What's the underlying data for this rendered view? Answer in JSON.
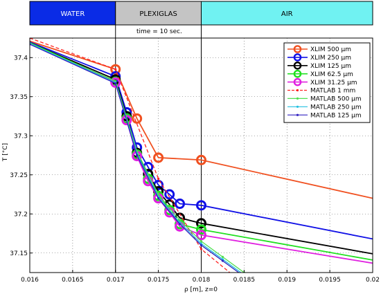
{
  "chart_data": {
    "type": "line",
    "title": "time = 10 sec.",
    "xlabel": "ρ [m], z=0",
    "ylabel": "T [°C]",
    "xlim": [
      0.016,
      0.02
    ],
    "ylim": [
      37.125,
      37.425
    ],
    "x_ticks": [
      "0.016",
      "0.0165",
      "0.017",
      "0.0175",
      "0.018",
      "0.0185",
      "0.019",
      "0.0195",
      "0.02"
    ],
    "y_ticks": [
      "37.15",
      "37.2",
      "37.25",
      "37.3",
      "37.35",
      "37.4"
    ],
    "grid": true,
    "legend_position": "top-right",
    "regions": [
      {
        "label": "WATER",
        "from": 0.016,
        "to": 0.017,
        "color": "#0a2be6",
        "text_color": "#ffffff"
      },
      {
        "label": "PLEXIGLAS",
        "from": 0.017,
        "to": 0.018,
        "color": "#c4c4c4",
        "text_color": "#000000"
      },
      {
        "label": "AIR",
        "from": 0.018,
        "to": 0.02,
        "color": "#70f2f2",
        "text_color": "#000000"
      }
    ],
    "boundaries": [
      0.017,
      0.018
    ],
    "series": [
      {
        "name": "XLIM 500 µm",
        "color": "#f05020",
        "style": "solid",
        "marker": "circle",
        "x": [
          0.016,
          0.017,
          0.01725,
          0.0175,
          0.018,
          0.02
        ],
        "y": [
          37.421,
          37.385,
          37.322,
          37.272,
          37.269,
          37.22
        ]
      },
      {
        "name": "XLIM 250 µm",
        "color": "#1010e6",
        "style": "solid",
        "marker": "circle",
        "x": [
          0.016,
          0.017,
          0.01713,
          0.01725,
          0.01738,
          0.0175,
          0.01763,
          0.01775,
          0.018,
          0.02
        ],
        "y": [
          37.42,
          37.376,
          37.33,
          37.285,
          37.26,
          37.237,
          37.225,
          37.213,
          37.211,
          37.168
        ]
      },
      {
        "name": "XLIM 125 µm",
        "color": "#000000",
        "style": "solid",
        "marker": "circle",
        "x": [
          0.016,
          0.017,
          0.01713,
          0.01725,
          0.01738,
          0.0175,
          0.01763,
          0.01775,
          0.018,
          0.02
        ],
        "y": [
          37.419,
          37.372,
          37.325,
          37.278,
          37.251,
          37.229,
          37.212,
          37.195,
          37.188,
          37.149
        ]
      },
      {
        "name": "XLIM 62.5 µm",
        "color": "#20e020",
        "style": "solid",
        "marker": "circle",
        "x": [
          0.016,
          0.017,
          0.01713,
          0.01725,
          0.01738,
          0.0175,
          0.01763,
          0.01775,
          0.018,
          0.02
        ],
        "y": [
          37.419,
          37.369,
          37.322,
          37.276,
          37.245,
          37.223,
          37.205,
          37.187,
          37.18,
          37.141
        ]
      },
      {
        "name": "XLIM 31.25 µm",
        "color": "#e020e0",
        "style": "solid",
        "marker": "circle",
        "x": [
          0.016,
          0.017,
          0.01713,
          0.01725,
          0.01738,
          0.0175,
          0.01763,
          0.01775,
          0.018,
          0.02
        ],
        "y": [
          37.418,
          37.368,
          37.32,
          37.274,
          37.242,
          37.22,
          37.202,
          37.184,
          37.173,
          37.137
        ]
      },
      {
        "name": "MATLAB 1 mm",
        "color": "#ff2020",
        "style": "dashed",
        "marker": "dot",
        "x": [
          0.016,
          0.017,
          0.0175,
          0.018,
          0.0185
        ],
        "y": [
          37.425,
          37.385,
          37.245,
          37.155,
          37.11
        ]
      },
      {
        "name": "MATLAB 500 µm",
        "color": "#50e050",
        "style": "solid",
        "marker": "dot",
        "x": [
          0.016,
          0.017,
          0.01725,
          0.0175,
          0.01775,
          0.018,
          0.01825,
          0.0185
        ],
        "y": [
          37.418,
          37.37,
          37.28,
          37.225,
          37.192,
          37.165,
          37.145,
          37.125
        ]
      },
      {
        "name": "MATLAB 250 µm",
        "color": "#20c0e0",
        "style": "solid",
        "marker": "dot",
        "x": [
          0.016,
          0.017,
          0.01725,
          0.0175,
          0.01775,
          0.018,
          0.01825,
          0.0185
        ],
        "y": [
          37.418,
          37.368,
          37.277,
          37.222,
          37.189,
          37.162,
          37.142,
          37.122
        ]
      },
      {
        "name": "MATLAB 125 µm",
        "color": "#3020c0",
        "style": "solid",
        "marker": "dot",
        "x": [
          0.016,
          0.017,
          0.01725,
          0.0175,
          0.01775,
          0.018,
          0.01825,
          0.0185
        ],
        "y": [
          37.417,
          37.367,
          37.275,
          37.22,
          37.187,
          37.16,
          37.14,
          37.12
        ]
      }
    ]
  }
}
